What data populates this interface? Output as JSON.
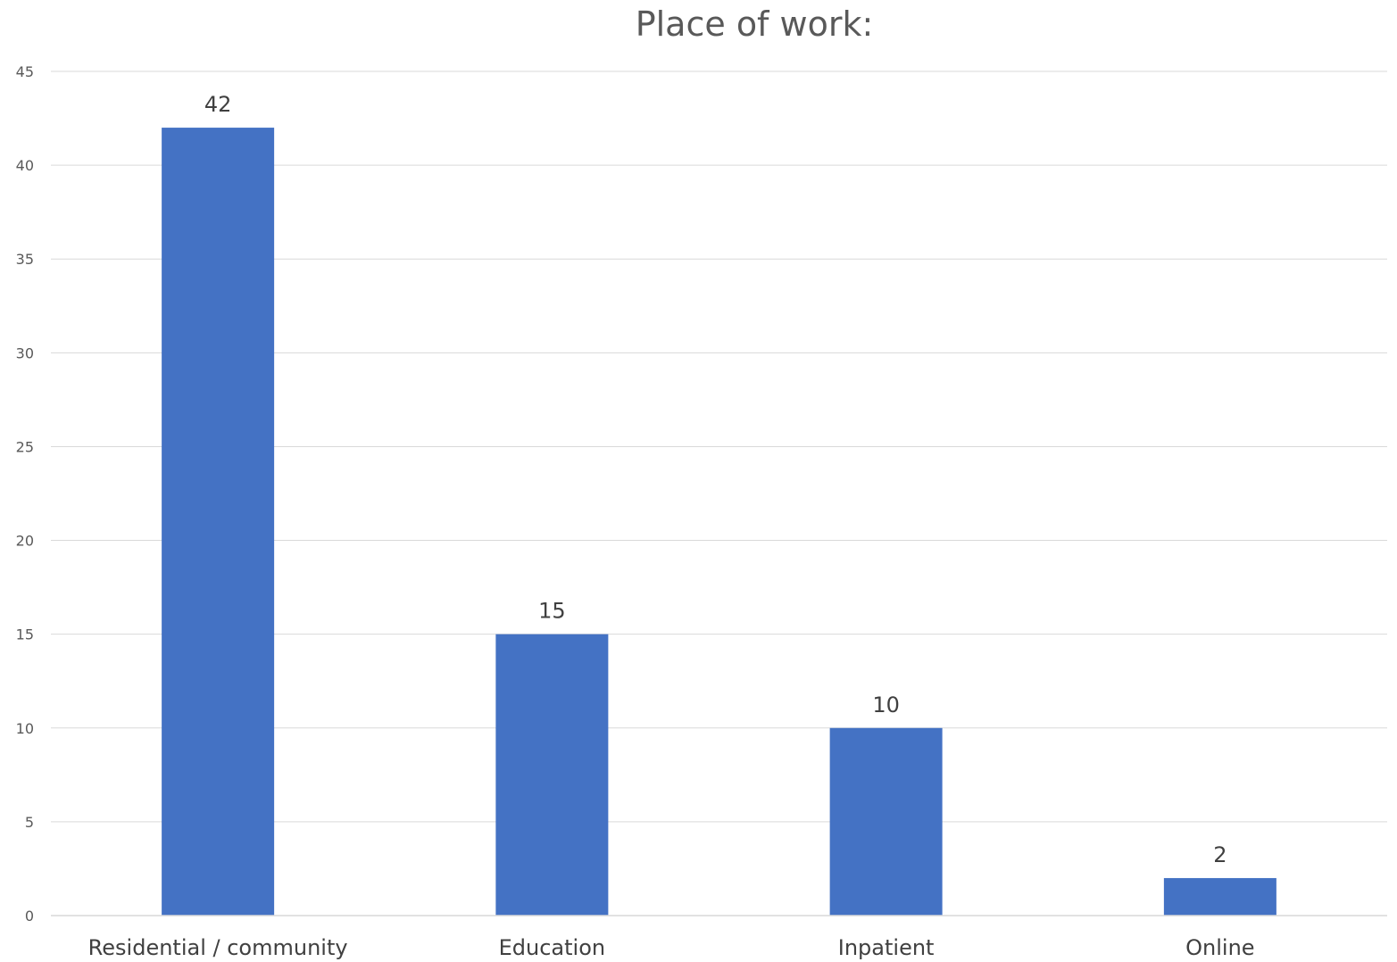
{
  "chart_data": {
    "type": "bar",
    "title": "Place of work:",
    "categories": [
      "Residential / community",
      "Education",
      "Inpatient",
      "Online"
    ],
    "values": [
      42,
      15,
      10,
      2
    ],
    "data_labels": [
      "42",
      "15",
      "10",
      "2"
    ],
    "yticks": [
      "0",
      "5",
      "10",
      "15",
      "20",
      "25",
      "30",
      "35",
      "40",
      "45"
    ],
    "ylim": [
      0,
      45
    ],
    "ytick_step": 5,
    "grid": true,
    "legend": "none",
    "bar_color": "#4472c4"
  }
}
